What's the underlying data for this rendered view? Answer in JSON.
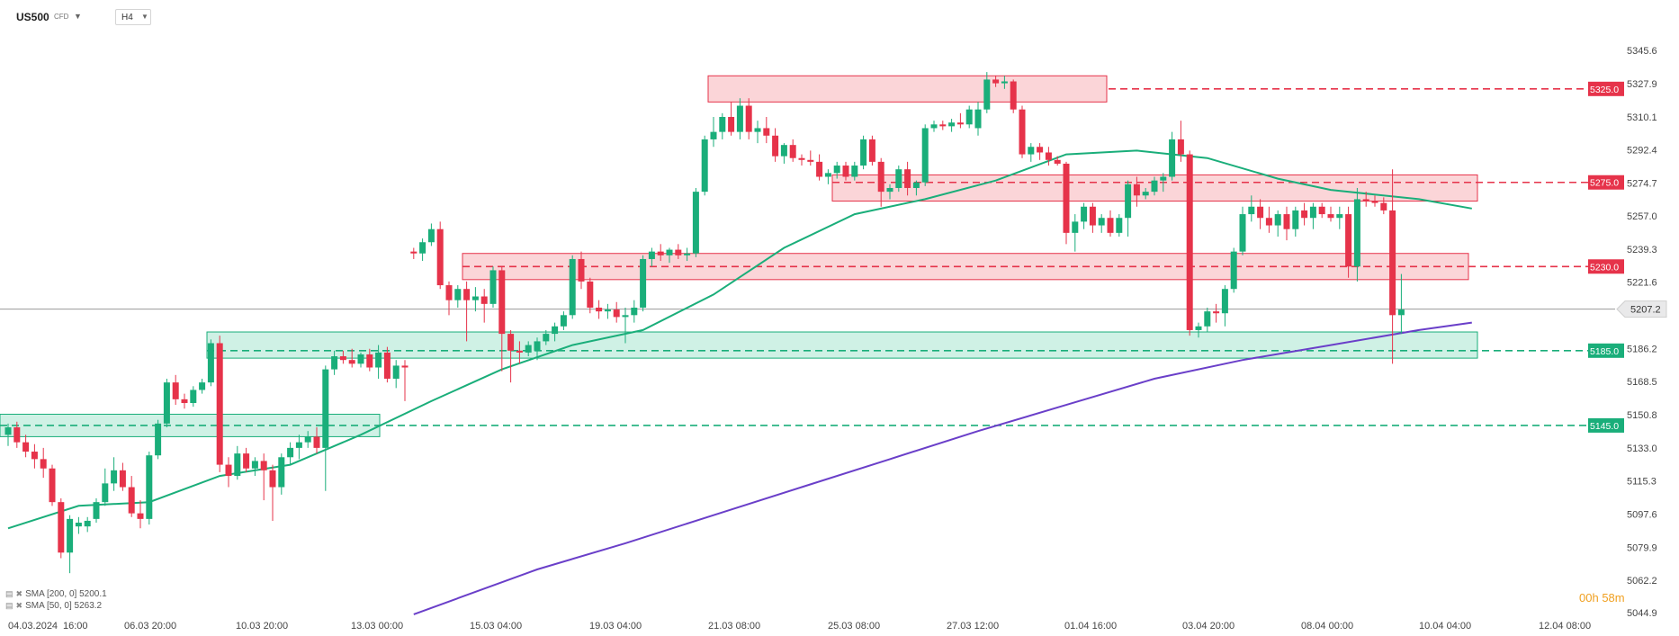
{
  "header": {
    "symbol": "US500",
    "symbol_type": "CFD",
    "timeframe": "H4"
  },
  "legend": [
    {
      "label": "SMA [200, 0] 5200.1",
      "color": "#6a3fc9"
    },
    {
      "label": "SMA [50, 0] 5263.2",
      "color": "#1aae7a"
    }
  ],
  "timer": {
    "hours": "00h",
    "minutes": "58m"
  },
  "colors": {
    "up": "#1aae7a",
    "down": "#e6334a",
    "sma200": "#6a3fc9",
    "sma50": "#1aae7a",
    "zone_red": "#f7b3b8",
    "zone_green": "#a8e6cf"
  },
  "chart_data": {
    "type": "candlestick",
    "instrument": "US500",
    "timeframe": "H4",
    "ylim": [
      5044.9,
      5345.6
    ],
    "y_ticks": [
      "5345.6",
      "5327.9",
      "5310.1",
      "5292.4",
      "5274.7",
      "5257.0",
      "5239.3",
      "5221.6",
      "5186.2",
      "5168.5",
      "5150.8",
      "5133.0",
      "5115.3",
      "5097.6",
      "5079.9",
      "5062.2",
      "5044.9"
    ],
    "x_ticks": [
      "04.03.2024",
      "16:00",
      "06.03 20:00",
      "10.03 20:00",
      "13.03 00:00",
      "15.03 04:00",
      "19.03 04:00",
      "21.03 08:00",
      "25.03 08:00",
      "27.03 12:00",
      "01.04 16:00",
      "03.04 20:00",
      "08.04 00:00",
      "10.04 04:00",
      "12.04 08:00"
    ],
    "last_price": "5207.2",
    "levels": [
      {
        "label": "5325.0",
        "value": 5325.0,
        "type": "resistance"
      },
      {
        "label": "5275.0",
        "value": 5275.0,
        "type": "resistance"
      },
      {
        "label": "5230.0",
        "value": 5230.0,
        "type": "resistance"
      },
      {
        "label": "5185.0",
        "value": 5185.0,
        "type": "support"
      },
      {
        "label": "5145.0",
        "value": 5145.0,
        "type": "support"
      }
    ],
    "candles": [
      {
        "o": 5140,
        "h": 5146,
        "l": 5134,
        "c": 5144
      },
      {
        "o": 5144,
        "h": 5147,
        "l": 5133,
        "c": 5136
      },
      {
        "o": 5136,
        "h": 5140,
        "l": 5128,
        "c": 5131
      },
      {
        "o": 5131,
        "h": 5135,
        "l": 5122,
        "c": 5127
      },
      {
        "o": 5127,
        "h": 5133,
        "l": 5117,
        "c": 5122
      },
      {
        "o": 5122,
        "h": 5124,
        "l": 5102,
        "c": 5104
      },
      {
        "o": 5104,
        "h": 5106,
        "l": 5074,
        "c": 5077
      },
      {
        "o": 5077,
        "h": 5097,
        "l": 5066,
        "c": 5095
      },
      {
        "o": 5091,
        "h": 5096,
        "l": 5087,
        "c": 5093
      },
      {
        "o": 5091,
        "h": 5096,
        "l": 5088,
        "c": 5094
      },
      {
        "o": 5095,
        "h": 5106,
        "l": 5093,
        "c": 5104
      },
      {
        "o": 5104,
        "h": 5122,
        "l": 5102,
        "c": 5114
      },
      {
        "o": 5114,
        "h": 5128,
        "l": 5110,
        "c": 5121
      },
      {
        "o": 5121,
        "h": 5125,
        "l": 5110,
        "c": 5112
      },
      {
        "o": 5112,
        "h": 5118,
        "l": 5096,
        "c": 5098
      },
      {
        "o": 5098,
        "h": 5105,
        "l": 5090,
        "c": 5095
      },
      {
        "o": 5095,
        "h": 5131,
        "l": 5092,
        "c": 5129
      },
      {
        "o": 5129,
        "h": 5148,
        "l": 5127,
        "c": 5146
      },
      {
        "o": 5146,
        "h": 5170,
        "l": 5144,
        "c": 5168
      },
      {
        "o": 5168,
        "h": 5172,
        "l": 5156,
        "c": 5159
      },
      {
        "o": 5159,
        "h": 5162,
        "l": 5154,
        "c": 5157
      },
      {
        "o": 5157,
        "h": 5166,
        "l": 5155,
        "c": 5164
      },
      {
        "o": 5164,
        "h": 5170,
        "l": 5162,
        "c": 5168
      },
      {
        "o": 5168,
        "h": 5191,
        "l": 5166,
        "c": 5189
      },
      {
        "o": 5189,
        "h": 5193,
        "l": 5120,
        "c": 5124
      },
      {
        "o": 5124,
        "h": 5128,
        "l": 5112,
        "c": 5118
      },
      {
        "o": 5118,
        "h": 5134,
        "l": 5116,
        "c": 5130
      },
      {
        "o": 5130,
        "h": 5133,
        "l": 5120,
        "c": 5122
      },
      {
        "o": 5122,
        "h": 5128,
        "l": 5118,
        "c": 5126
      },
      {
        "o": 5126,
        "h": 5130,
        "l": 5105,
        "c": 5121
      },
      {
        "o": 5121,
        "h": 5124,
        "l": 5094,
        "c": 5112
      },
      {
        "o": 5112,
        "h": 5130,
        "l": 5108,
        "c": 5128
      },
      {
        "o": 5128,
        "h": 5136,
        "l": 5124,
        "c": 5133
      },
      {
        "o": 5133,
        "h": 5140,
        "l": 5127,
        "c": 5136
      },
      {
        "o": 5136,
        "h": 5142,
        "l": 5133,
        "c": 5139
      },
      {
        "o": 5139,
        "h": 5144,
        "l": 5130,
        "c": 5133
      },
      {
        "o": 5133,
        "h": 5177,
        "l": 5110,
        "c": 5175
      },
      {
        "o": 5175,
        "h": 5185,
        "l": 5172,
        "c": 5182
      },
      {
        "o": 5182,
        "h": 5185,
        "l": 5178,
        "c": 5180
      },
      {
        "o": 5180,
        "h": 5186,
        "l": 5176,
        "c": 5178
      },
      {
        "o": 5178,
        "h": 5184,
        "l": 5176,
        "c": 5183
      },
      {
        "o": 5183,
        "h": 5186,
        "l": 5174,
        "c": 5176
      },
      {
        "o": 5176,
        "h": 5188,
        "l": 5170,
        "c": 5184
      },
      {
        "o": 5184,
        "h": 5187,
        "l": 5168,
        "c": 5170
      },
      {
        "o": 5170,
        "h": 5180,
        "l": 5165,
        "c": 5177
      },
      {
        "o": 5177,
        "h": 5180,
        "l": 5158,
        "c": 5176
      },
      {
        "o": 5238,
        "h": 5240,
        "l": 5234,
        "c": 5237
      },
      {
        "o": 5237,
        "h": 5245,
        "l": 5233,
        "c": 5243
      },
      {
        "o": 5243,
        "h": 5253,
        "l": 5241,
        "c": 5250
      },
      {
        "o": 5250,
        "h": 5254,
        "l": 5218,
        "c": 5220
      },
      {
        "o": 5220,
        "h": 5222,
        "l": 5204,
        "c": 5212
      },
      {
        "o": 5212,
        "h": 5220,
        "l": 5208,
        "c": 5218
      },
      {
        "o": 5218,
        "h": 5222,
        "l": 5190,
        "c": 5212
      },
      {
        "o": 5212,
        "h": 5219,
        "l": 5206,
        "c": 5214
      },
      {
        "o": 5214,
        "h": 5218,
        "l": 5200,
        "c": 5210
      },
      {
        "o": 5210,
        "h": 5230,
        "l": 5208,
        "c": 5228
      },
      {
        "o": 5228,
        "h": 5230,
        "l": 5174,
        "c": 5194
      },
      {
        "o": 5194,
        "h": 5196,
        "l": 5168,
        "c": 5185
      },
      {
        "o": 5185,
        "h": 5190,
        "l": 5178,
        "c": 5184
      },
      {
        "o": 5184,
        "h": 5190,
        "l": 5182,
        "c": 5188
      },
      {
        "o": 5185,
        "h": 5192,
        "l": 5180,
        "c": 5190
      },
      {
        "o": 5190,
        "h": 5196,
        "l": 5188,
        "c": 5194
      },
      {
        "o": 5194,
        "h": 5200,
        "l": 5190,
        "c": 5198
      },
      {
        "o": 5198,
        "h": 5206,
        "l": 5196,
        "c": 5204
      },
      {
        "o": 5204,
        "h": 5236,
        "l": 5202,
        "c": 5234
      },
      {
        "o": 5234,
        "h": 5238,
        "l": 5218,
        "c": 5222
      },
      {
        "o": 5222,
        "h": 5224,
        "l": 5205,
        "c": 5208
      },
      {
        "o": 5208,
        "h": 5212,
        "l": 5202,
        "c": 5206
      },
      {
        "o": 5206,
        "h": 5210,
        "l": 5202,
        "c": 5207
      },
      {
        "o": 5207,
        "h": 5211,
        "l": 5200,
        "c": 5203
      },
      {
        "o": 5203,
        "h": 5208,
        "l": 5189,
        "c": 5204
      },
      {
        "o": 5204,
        "h": 5212,
        "l": 5200,
        "c": 5208
      },
      {
        "o": 5208,
        "h": 5236,
        "l": 5206,
        "c": 5234
      },
      {
        "o": 5234,
        "h": 5240,
        "l": 5230,
        "c": 5238
      },
      {
        "o": 5238,
        "h": 5242,
        "l": 5233,
        "c": 5236
      },
      {
        "o": 5236,
        "h": 5240,
        "l": 5232,
        "c": 5239
      },
      {
        "o": 5239,
        "h": 5242,
        "l": 5234,
        "c": 5236
      },
      {
        "o": 5236,
        "h": 5240,
        "l": 5233,
        "c": 5237
      },
      {
        "o": 5237,
        "h": 5272,
        "l": 5235,
        "c": 5270
      },
      {
        "o": 5270,
        "h": 5300,
        "l": 5268,
        "c": 5298
      },
      {
        "o": 5298,
        "h": 5310,
        "l": 5294,
        "c": 5302
      },
      {
        "o": 5302,
        "h": 5312,
        "l": 5298,
        "c": 5310
      },
      {
        "o": 5310,
        "h": 5318,
        "l": 5300,
        "c": 5302
      },
      {
        "o": 5302,
        "h": 5320,
        "l": 5298,
        "c": 5316
      },
      {
        "o": 5316,
        "h": 5320,
        "l": 5298,
        "c": 5302
      },
      {
        "o": 5302,
        "h": 5308,
        "l": 5296,
        "c": 5304
      },
      {
        "o": 5304,
        "h": 5310,
        "l": 5296,
        "c": 5300
      },
      {
        "o": 5300,
        "h": 5304,
        "l": 5286,
        "c": 5289
      },
      {
        "o": 5289,
        "h": 5296,
        "l": 5285,
        "c": 5295
      },
      {
        "o": 5295,
        "h": 5298,
        "l": 5286,
        "c": 5288
      },
      {
        "o": 5288,
        "h": 5290,
        "l": 5284,
        "c": 5287
      },
      {
        "o": 5287,
        "h": 5292,
        "l": 5284,
        "c": 5286
      },
      {
        "o": 5286,
        "h": 5290,
        "l": 5276,
        "c": 5278
      },
      {
        "o": 5278,
        "h": 5282,
        "l": 5274,
        "c": 5280
      },
      {
        "o": 5280,
        "h": 5286,
        "l": 5277,
        "c": 5284
      },
      {
        "o": 5284,
        "h": 5286,
        "l": 5276,
        "c": 5278
      },
      {
        "o": 5278,
        "h": 5286,
        "l": 5276,
        "c": 5284
      },
      {
        "o": 5284,
        "h": 5300,
        "l": 5282,
        "c": 5298
      },
      {
        "o": 5298,
        "h": 5300,
        "l": 5284,
        "c": 5286
      },
      {
        "o": 5286,
        "h": 5288,
        "l": 5262,
        "c": 5270
      },
      {
        "o": 5270,
        "h": 5274,
        "l": 5266,
        "c": 5272
      },
      {
        "o": 5272,
        "h": 5284,
        "l": 5270,
        "c": 5282
      },
      {
        "o": 5282,
        "h": 5286,
        "l": 5268,
        "c": 5272
      },
      {
        "o": 5272,
        "h": 5276,
        "l": 5268,
        "c": 5275
      },
      {
        "o": 5275,
        "h": 5306,
        "l": 5273,
        "c": 5304
      },
      {
        "o": 5304,
        "h": 5308,
        "l": 5302,
        "c": 5306
      },
      {
        "o": 5306,
        "h": 5308,
        "l": 5303,
        "c": 5305
      },
      {
        "o": 5305,
        "h": 5309,
        "l": 5302,
        "c": 5307
      },
      {
        "o": 5307,
        "h": 5312,
        "l": 5304,
        "c": 5306
      },
      {
        "o": 5306,
        "h": 5316,
        "l": 5304,
        "c": 5314
      },
      {
        "o": 5304,
        "h": 5318,
        "l": 5300,
        "c": 5314
      },
      {
        "o": 5314,
        "h": 5334,
        "l": 5312,
        "c": 5330
      },
      {
        "o": 5330,
        "h": 5332,
        "l": 5326,
        "c": 5328
      },
      {
        "o": 5328,
        "h": 5332,
        "l": 5325,
        "c": 5329
      },
      {
        "o": 5329,
        "h": 5330,
        "l": 5312,
        "c": 5314
      },
      {
        "o": 5314,
        "h": 5316,
        "l": 5288,
        "c": 5290
      },
      {
        "o": 5290,
        "h": 5296,
        "l": 5286,
        "c": 5294
      },
      {
        "o": 5294,
        "h": 5296,
        "l": 5287,
        "c": 5291
      },
      {
        "o": 5291,
        "h": 5294,
        "l": 5284,
        "c": 5287
      },
      {
        "o": 5287,
        "h": 5289,
        "l": 5284,
        "c": 5285
      },
      {
        "o": 5285,
        "h": 5286,
        "l": 5242,
        "c": 5248
      },
      {
        "o": 5248,
        "h": 5258,
        "l": 5238,
        "c": 5254
      },
      {
        "o": 5254,
        "h": 5264,
        "l": 5250,
        "c": 5262
      },
      {
        "o": 5262,
        "h": 5264,
        "l": 5248,
        "c": 5252
      },
      {
        "o": 5252,
        "h": 5258,
        "l": 5248,
        "c": 5256
      },
      {
        "o": 5256,
        "h": 5260,
        "l": 5246,
        "c": 5248
      },
      {
        "o": 5248,
        "h": 5258,
        "l": 5246,
        "c": 5256
      },
      {
        "o": 5256,
        "h": 5276,
        "l": 5246,
        "c": 5274
      },
      {
        "o": 5274,
        "h": 5278,
        "l": 5262,
        "c": 5268
      },
      {
        "o": 5268,
        "h": 5272,
        "l": 5266,
        "c": 5270
      },
      {
        "o": 5270,
        "h": 5278,
        "l": 5268,
        "c": 5276
      },
      {
        "o": 5276,
        "h": 5280,
        "l": 5270,
        "c": 5278
      },
      {
        "o": 5278,
        "h": 5302,
        "l": 5276,
        "c": 5298
      },
      {
        "o": 5298,
        "h": 5308,
        "l": 5286,
        "c": 5290
      },
      {
        "o": 5290,
        "h": 5292,
        "l": 5193,
        "c": 5196
      },
      {
        "o": 5196,
        "h": 5200,
        "l": 5192,
        "c": 5198
      },
      {
        "o": 5198,
        "h": 5208,
        "l": 5195,
        "c": 5206
      },
      {
        "o": 5206,
        "h": 5210,
        "l": 5200,
        "c": 5205
      },
      {
        "o": 5205,
        "h": 5220,
        "l": 5198,
        "c": 5218
      },
      {
        "o": 5218,
        "h": 5240,
        "l": 5216,
        "c": 5238
      },
      {
        "o": 5238,
        "h": 5262,
        "l": 5236,
        "c": 5258
      },
      {
        "o": 5258,
        "h": 5268,
        "l": 5254,
        "c": 5262
      },
      {
        "o": 5262,
        "h": 5266,
        "l": 5250,
        "c": 5256
      },
      {
        "o": 5256,
        "h": 5262,
        "l": 5248,
        "c": 5252
      },
      {
        "o": 5252,
        "h": 5260,
        "l": 5246,
        "c": 5258
      },
      {
        "o": 5258,
        "h": 5262,
        "l": 5244,
        "c": 5250
      },
      {
        "o": 5250,
        "h": 5262,
        "l": 5246,
        "c": 5260
      },
      {
        "o": 5260,
        "h": 5264,
        "l": 5252,
        "c": 5256
      },
      {
        "o": 5256,
        "h": 5264,
        "l": 5250,
        "c": 5262
      },
      {
        "o": 5262,
        "h": 5264,
        "l": 5256,
        "c": 5258
      },
      {
        "o": 5258,
        "h": 5262,
        "l": 5254,
        "c": 5256
      },
      {
        "o": 5256,
        "h": 5262,
        "l": 5250,
        "c": 5258
      },
      {
        "o": 5258,
        "h": 5262,
        "l": 5224,
        "c": 5230
      },
      {
        "o": 5230,
        "h": 5272,
        "l": 5222,
        "c": 5266
      },
      {
        "o": 5266,
        "h": 5270,
        "l": 5262,
        "c": 5265
      },
      {
        "o": 5265,
        "h": 5268,
        "l": 5262,
        "c": 5264
      },
      {
        "o": 5264,
        "h": 5267,
        "l": 5258,
        "c": 5260
      },
      {
        "o": 5260,
        "h": 5282,
        "l": 5178,
        "c": 5204
      },
      {
        "o": 5204,
        "h": 5226,
        "l": 5194,
        "c": 5207
      }
    ],
    "sma50": [
      [
        0,
        5090
      ],
      [
        8,
        5102
      ],
      [
        16,
        5104
      ],
      [
        24,
        5118
      ],
      [
        32,
        5124
      ],
      [
        40,
        5140
      ],
      [
        48,
        5158
      ],
      [
        56,
        5175
      ],
      [
        64,
        5188
      ],
      [
        72,
        5196
      ],
      [
        80,
        5215
      ],
      [
        88,
        5240
      ],
      [
        96,
        5258
      ],
      [
        104,
        5266
      ],
      [
        112,
        5276
      ],
      [
        120,
        5290
      ],
      [
        128,
        5292
      ],
      [
        136,
        5288
      ],
      [
        144,
        5277
      ],
      [
        150,
        5271
      ],
      [
        160,
        5266
      ],
      [
        166,
        5261
      ]
    ],
    "sma200": [
      [
        46,
        5044
      ],
      [
        60,
        5068
      ],
      [
        70,
        5082
      ],
      [
        80,
        5097
      ],
      [
        90,
        5112
      ],
      [
        100,
        5127
      ],
      [
        110,
        5142
      ],
      [
        120,
        5156
      ],
      [
        130,
        5170
      ],
      [
        140,
        5180
      ],
      [
        150,
        5188
      ],
      [
        160,
        5196
      ],
      [
        166,
        5200
      ]
    ]
  }
}
